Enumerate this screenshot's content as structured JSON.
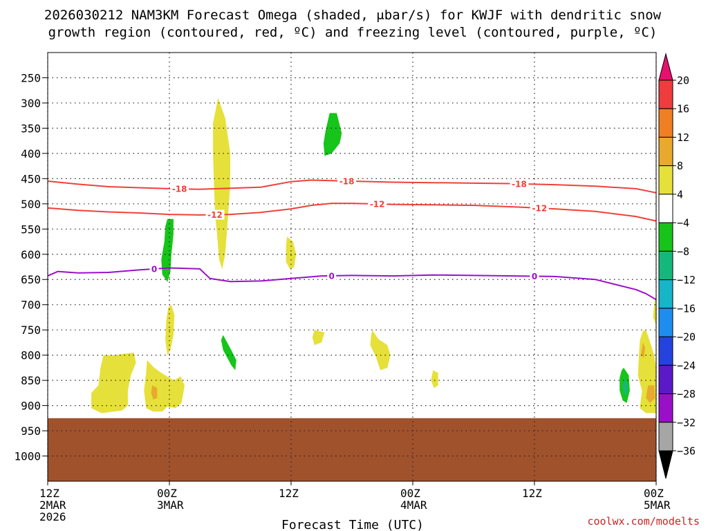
{
  "chart_data": {
    "type": "heatmap",
    "title_line1": "2026030212 NAM3KM Forecast Omega (shaded, μbar/s) for KWJF with dendritic snow",
    "title_line2": "growth region (contoured, red, ºC) and freezing level (contoured, purple, ºC)",
    "xlabel": "Forecast Time (UTC)",
    "credit": "coolwx.com/modelts",
    "xlim": [
      0,
      60
    ],
    "ylim": [
      1050,
      200
    ],
    "x_ticks": [
      {
        "x": 0,
        "line1": "12Z",
        "line2": "2MAR",
        "line3": "2026"
      },
      {
        "x": 12,
        "line1": "00Z",
        "line2": "3MAR",
        "line3": ""
      },
      {
        "x": 24,
        "line1": "12Z",
        "line2": "",
        "line3": ""
      },
      {
        "x": 36,
        "line1": "00Z",
        "line2": "4MAR",
        "line3": ""
      },
      {
        "x": 48,
        "line1": "12Z",
        "line2": "",
        "line3": ""
      },
      {
        "x": 60,
        "line1": "00Z",
        "line2": "5MAR",
        "line3": ""
      }
    ],
    "y_ticks": [
      250,
      300,
      350,
      400,
      450,
      500,
      550,
      600,
      650,
      700,
      750,
      800,
      850,
      900,
      950,
      1000
    ],
    "terrain": {
      "surface_pressure": 925,
      "color": "#a0522d"
    },
    "colorbar": {
      "labels": [
        20,
        16,
        12,
        8,
        4,
        -4,
        -8,
        -12,
        -16,
        -20,
        -24,
        -28,
        -32,
        -36
      ],
      "colors": [
        "#e8106e",
        "#f03c3c",
        "#ef7f22",
        "#e8a92e",
        "#e6e03a",
        "#ffffff",
        "#16c41a",
        "#15b87c",
        "#16b5c8",
        "#1d8ef0",
        "#2443de",
        "#5b19c8",
        "#9a10c8",
        "#a6a6a6",
        "#000000"
      ]
    },
    "series": [
      {
        "name": "-18",
        "kind": "dendritic",
        "color": "#ef4138",
        "x": [
          0,
          3,
          6,
          9,
          12,
          15,
          18,
          21,
          24,
          26,
          30,
          34,
          38,
          42,
          46,
          50,
          54,
          58,
          60
        ],
        "values": [
          455,
          461,
          466,
          468,
          470,
          471,
          469,
          467,
          456,
          453,
          455,
          457,
          458,
          459,
          460,
          462,
          465,
          470,
          478
        ],
        "label_x": [
          13,
          29.5,
          46.5
        ]
      },
      {
        "name": "-12",
        "kind": "dendritic",
        "color": "#ef4138",
        "x": [
          0,
          3,
          6,
          9,
          12,
          15,
          18,
          21,
          24,
          26,
          28,
          30,
          34,
          38,
          42,
          46,
          50,
          54,
          58,
          60
        ],
        "values": [
          508,
          513,
          516,
          518,
          521,
          522,
          521,
          517,
          510,
          503,
          499,
          499,
          501,
          502,
          503,
          506,
          510,
          515,
          525,
          534
        ],
        "label_x": [
          16.5,
          32.5,
          48.5
        ]
      },
      {
        "name": "0",
        "kind": "freezing",
        "color": "#9a10c8",
        "x": [
          0,
          1,
          3,
          6,
          9,
          12,
          15,
          16,
          18,
          21,
          24,
          27,
          30,
          34,
          38,
          42,
          46,
          50,
          54,
          56,
          58,
          59,
          60
        ],
        "values": [
          643,
          634,
          637,
          636,
          631,
          627,
          629,
          648,
          654,
          653,
          648,
          643,
          642,
          643,
          641,
          642,
          643,
          644,
          650,
          660,
          670,
          678,
          690
        ],
        "label_x": [
          10.5,
          28,
          48
        ]
      }
    ],
    "shaded_regions": [
      {
        "value": 4,
        "color": "#e6e03a",
        "points": [
          [
            16.8,
            290
          ],
          [
            17.5,
            330
          ],
          [
            18.0,
            400
          ],
          [
            18.0,
            460
          ],
          [
            17.8,
            520
          ],
          [
            17.5,
            600
          ],
          [
            17.2,
            630
          ],
          [
            16.9,
            610
          ],
          [
            16.7,
            560
          ],
          [
            16.5,
            520
          ],
          [
            16.4,
            460
          ],
          [
            16.3,
            400
          ],
          [
            16.3,
            340
          ]
        ]
      },
      {
        "value": 4,
        "color": "#e6e03a",
        "points": [
          [
            23.6,
            565
          ],
          [
            24.2,
            575
          ],
          [
            24.5,
            600
          ],
          [
            24.3,
            625
          ],
          [
            23.9,
            630
          ],
          [
            23.5,
            615
          ],
          [
            23.5,
            585
          ]
        ]
      },
      {
        "value": 4,
        "color": "#e6e03a",
        "points": [
          [
            12.2,
            700
          ],
          [
            12.5,
            720
          ],
          [
            12.4,
            760
          ],
          [
            12.1,
            790
          ],
          [
            11.8,
            800
          ],
          [
            11.6,
            770
          ],
          [
            11.7,
            730
          ],
          [
            11.9,
            705
          ]
        ]
      },
      {
        "value": 4,
        "color": "#e6e03a",
        "points": [
          [
            26.3,
            750
          ],
          [
            27.3,
            755
          ],
          [
            27.0,
            775
          ],
          [
            26.3,
            780
          ],
          [
            26.1,
            765
          ]
        ]
      },
      {
        "value": 4,
        "color": "#e6e03a",
        "points": [
          [
            32.0,
            750
          ],
          [
            32.6,
            768
          ],
          [
            33.5,
            780
          ],
          [
            33.8,
            800
          ],
          [
            33.5,
            825
          ],
          [
            32.8,
            830
          ],
          [
            32.4,
            805
          ],
          [
            31.8,
            780
          ],
          [
            31.9,
            760
          ]
        ]
      },
      {
        "value": 4,
        "color": "#e6e03a",
        "points": [
          [
            38.0,
            830
          ],
          [
            38.5,
            835
          ],
          [
            38.5,
            860
          ],
          [
            38.1,
            865
          ],
          [
            37.8,
            850
          ]
        ]
      },
      {
        "value": 4,
        "color": "#e6e03a",
        "points": [
          [
            5.5,
            800
          ],
          [
            6.5,
            800
          ],
          [
            8.5,
            795
          ],
          [
            8.7,
            815
          ],
          [
            8.2,
            840
          ],
          [
            7.9,
            870
          ],
          [
            7.9,
            900
          ],
          [
            7.3,
            910
          ],
          [
            5.3,
            915
          ],
          [
            4.3,
            905
          ],
          [
            4.3,
            875
          ],
          [
            5.0,
            860
          ],
          [
            5.2,
            825
          ]
        ]
      },
      {
        "value": 4,
        "color": "#e6e03a",
        "points": [
          [
            9.8,
            810
          ],
          [
            10.5,
            825
          ],
          [
            11.2,
            835
          ],
          [
            12.0,
            845
          ],
          [
            12.5,
            850
          ],
          [
            13.1,
            842
          ],
          [
            13.5,
            860
          ],
          [
            13.2,
            895
          ],
          [
            12.6,
            905
          ],
          [
            11.8,
            902
          ],
          [
            11.3,
            912
          ],
          [
            10.4,
            912
          ],
          [
            9.7,
            905
          ],
          [
            9.5,
            870
          ],
          [
            9.7,
            835
          ]
        ]
      },
      {
        "value": 4,
        "color": "#e6e03a",
        "points": [
          [
            59.0,
            750
          ],
          [
            59.5,
            780
          ],
          [
            59.8,
            800
          ],
          [
            60.0,
            825
          ],
          [
            60.0,
            915
          ],
          [
            59.0,
            915
          ],
          [
            58.4,
            905
          ],
          [
            58.6,
            870
          ],
          [
            58.2,
            840
          ],
          [
            58.3,
            800
          ],
          [
            58.4,
            770
          ],
          [
            58.7,
            752
          ]
        ]
      },
      {
        "value": 4,
        "color": "#e6e03a",
        "points": [
          [
            60.0,
            680
          ],
          [
            60.0,
            740
          ],
          [
            59.7,
            725
          ],
          [
            59.8,
            700
          ]
        ]
      },
      {
        "value": 8,
        "color": "#e8a92e",
        "points": [
          [
            10.3,
            860
          ],
          [
            10.8,
            865
          ],
          [
            10.8,
            885
          ],
          [
            10.4,
            888
          ],
          [
            10.2,
            875
          ]
        ]
      },
      {
        "value": 8,
        "color": "#e8a92e",
        "points": [
          [
            59.2,
            860
          ],
          [
            59.8,
            860
          ],
          [
            59.9,
            885
          ],
          [
            59.4,
            895
          ],
          [
            59.0,
            885
          ]
        ]
      },
      {
        "value": 8,
        "color": "#e8a92e",
        "points": [
          [
            58.7,
            775
          ],
          [
            58.9,
            785
          ],
          [
            58.8,
            805
          ],
          [
            58.5,
            800
          ]
        ]
      },
      {
        "value": -4,
        "color": "#16c41a",
        "points": [
          [
            27.8,
            320
          ],
          [
            28.5,
            320
          ],
          [
            29.0,
            360
          ],
          [
            28.8,
            380
          ],
          [
            28.0,
            400
          ],
          [
            27.3,
            405
          ],
          [
            27.2,
            380
          ],
          [
            27.4,
            355
          ]
        ]
      },
      {
        "value": -4,
        "color": "#16c41a",
        "points": [
          [
            11.8,
            530
          ],
          [
            12.4,
            530
          ],
          [
            12.4,
            560
          ],
          [
            12.2,
            600
          ],
          [
            12.1,
            635
          ],
          [
            11.8,
            655
          ],
          [
            11.3,
            640
          ],
          [
            11.2,
            610
          ],
          [
            11.5,
            575
          ],
          [
            11.6,
            545
          ]
        ]
      },
      {
        "value": -4,
        "color": "#16c41a",
        "points": [
          [
            17.3,
            760
          ],
          [
            17.7,
            775
          ],
          [
            18.1,
            790
          ],
          [
            18.6,
            810
          ],
          [
            18.5,
            830
          ],
          [
            18.1,
            820
          ],
          [
            17.7,
            805
          ],
          [
            17.3,
            790
          ],
          [
            17.1,
            770
          ]
        ]
      },
      {
        "value": -4,
        "color": "#16c41a",
        "points": [
          [
            56.8,
            825
          ],
          [
            57.3,
            840
          ],
          [
            57.4,
            870
          ],
          [
            57.1,
            895
          ],
          [
            56.7,
            890
          ],
          [
            56.4,
            870
          ],
          [
            56.4,
            845
          ],
          [
            56.6,
            830
          ]
        ]
      },
      {
        "value": -8,
        "color": "#15b87c",
        "points": [
          [
            56.9,
            845
          ],
          [
            57.2,
            860
          ],
          [
            57.1,
            880
          ],
          [
            56.8,
            875
          ],
          [
            56.7,
            860
          ]
        ]
      }
    ]
  }
}
